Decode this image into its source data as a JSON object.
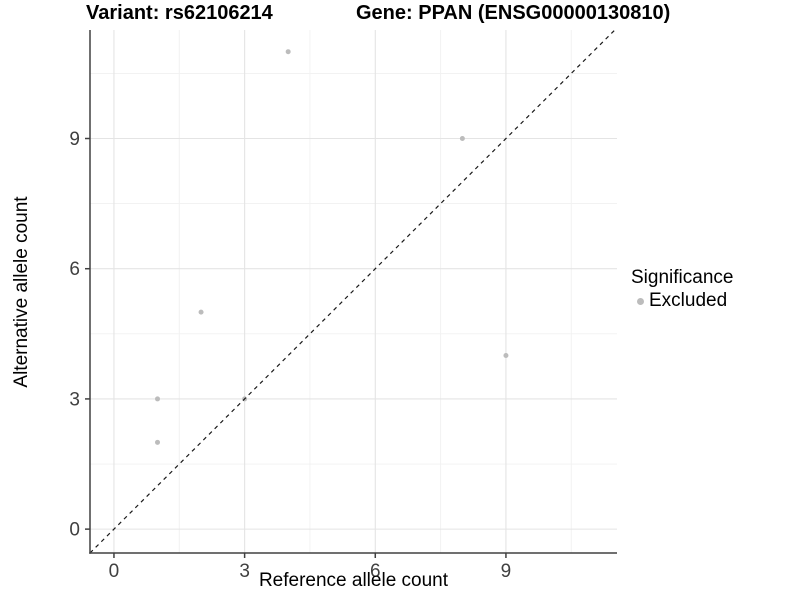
{
  "titles": {
    "variant": "Variant: rs62106214",
    "gene": "Gene: PPAN (ENSG00000130810)"
  },
  "legend": {
    "title": "Significance",
    "items": [
      {
        "label": "Excluded",
        "marker": "circle-icon",
        "color": "#bcbcbc"
      }
    ]
  },
  "chart_data": {
    "type": "scatter",
    "title": "Variant: rs62106214   Gene: PPAN (ENSG00000130810)",
    "xlabel": "Reference allele count",
    "ylabel": "Alternative allele count",
    "xlim": [
      -0.55,
      11.55
    ],
    "ylim": [
      -0.55,
      11.5
    ],
    "x_ticks": [
      0,
      3,
      6,
      9
    ],
    "y_ticks": [
      0,
      3,
      6,
      9
    ],
    "x_minor_ticks": [
      1.5,
      4.5,
      7.5,
      10.5
    ],
    "y_minor_ticks": [
      1.5,
      4.5,
      7.5,
      10.5
    ],
    "grid": true,
    "legend_position": "right",
    "series": [
      {
        "name": "Excluded",
        "color": "#bcbcbc",
        "points": [
          {
            "x": 1,
            "y": 2
          },
          {
            "x": 1,
            "y": 3
          },
          {
            "x": 2,
            "y": 5
          },
          {
            "x": 3,
            "y": 3
          },
          {
            "x": 4,
            "y": 11
          },
          {
            "x": 8,
            "y": 9
          },
          {
            "x": 9,
            "y": 4
          }
        ]
      }
    ],
    "identity_line": {
      "slope": 1,
      "intercept": 0,
      "style": "dashed",
      "color": "#1a1a1a"
    },
    "point_radius": 2.5,
    "colors": {
      "major_grid": "#e4e4e4",
      "minor_grid": "#f1f1f1",
      "axis_line": "#404040",
      "tick_text": "#404040",
      "background": "#ffffff"
    }
  }
}
